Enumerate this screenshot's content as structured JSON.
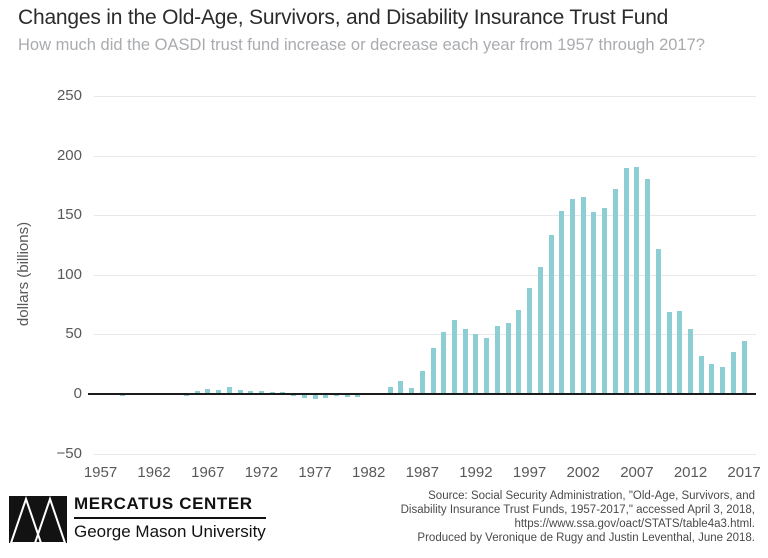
{
  "header": {
    "title": "Changes in the Old-Age, Survivors, and Disability Insurance Trust Fund",
    "subtitle": "How much did the OASDI trust fund increase or decrease each year from 1957 through 2017?"
  },
  "chart_data": {
    "type": "bar",
    "title": "Changes in the Old-Age, Survivors, and Disability Insurance Trust Fund",
    "subtitle": "How much did the OASDI trust fund increase or decrease each year from 1957 through 2017?",
    "xlabel": "",
    "ylabel": "dollars (billions)",
    "ylim": [
      -50,
      250
    ],
    "y_ticks": [
      250,
      200,
      150,
      100,
      50,
      0,
      -50
    ],
    "x_ticks": [
      1957,
      1962,
      1967,
      1972,
      1977,
      1982,
      1987,
      1992,
      1997,
      2002,
      2007,
      2012,
      2017
    ],
    "grid": true,
    "legend": false,
    "bar_color": "#8dcdd4",
    "axis_color": "#1c1c1c",
    "grid_color": "#e7e8e9",
    "tick_text_color": "#58595b",
    "years": [
      1957,
      1958,
      1959,
      1960,
      1961,
      1962,
      1963,
      1964,
      1965,
      1966,
      1967,
      1968,
      1969,
      1970,
      1971,
      1972,
      1973,
      1974,
      1975,
      1976,
      1977,
      1978,
      1979,
      1980,
      1981,
      1982,
      1983,
      1984,
      1985,
      1986,
      1987,
      1988,
      1989,
      1990,
      1991,
      1992,
      1993,
      1994,
      1995,
      1996,
      1997,
      1998,
      1999,
      2000,
      2001,
      2002,
      2003,
      2004,
      2005,
      2006,
      2007,
      2008,
      2009,
      2010,
      2011,
      2012,
      2013,
      2014,
      2015,
      2016,
      2017
    ],
    "values": [
      0.3,
      -1.1,
      -1.8,
      0.5,
      -0.8,
      -1.2,
      0.4,
      0.6,
      -1.3,
      2.5,
      4.1,
      3.1,
      5.5,
      3.7,
      2.4,
      2.4,
      1.6,
      1.5,
      -1.5,
      -3.2,
      -3.9,
      -3.4,
      -2.0,
      -2.5,
      -2.2,
      -0.6,
      0.2,
      6.2,
      11.1,
      4.7,
      19.6,
      38.8,
      52.0,
      62.3,
      54.2,
      50.7,
      46.8,
      56.8,
      59.7,
      70.9,
      88.6,
      106.9,
      133.7,
      153.3,
      163.5,
      165.4,
      152.8,
      156.1,
      171.8,
      189.5,
      190.4,
      180.2,
      121.7,
      68.6,
      69.3,
      54.4,
      32.1,
      25.0,
      23.1,
      35.2,
      44.1
    ]
  },
  "footer": {
    "logo": "mercatus-m-logo",
    "org": "MERCATUS CENTER",
    "university": "George Mason University",
    "source_lines": [
      "Source: Social Security Administration, \"Old-Age, Survivors, and",
      "Disability Insurance Trust Funds, 1957-2017,\" accessed April 3, 2018,",
      "https://www.ssa.gov/oact/STATS/table4a3.html.",
      "Produced by Veronique de Rugy and Justin Leventhal, June 2018."
    ]
  }
}
